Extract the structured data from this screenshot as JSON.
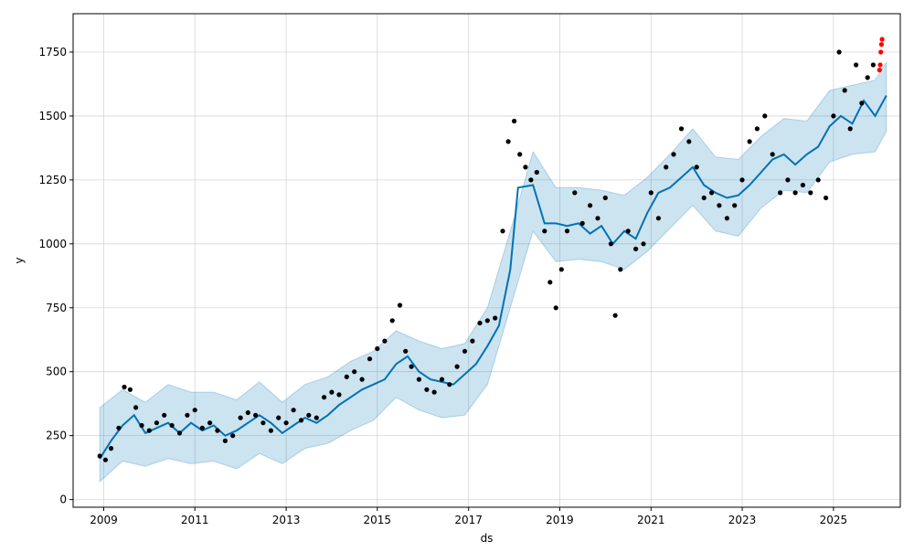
{
  "chart_data": {
    "type": "scatter",
    "title": "",
    "xlabel": "ds",
    "ylabel": "y",
    "x_axis": {
      "scale": "time",
      "range": [
        "2008-05-01",
        "2026-06-20"
      ],
      "ticks": [
        "2009",
        "2011",
        "2013",
        "2015",
        "2017",
        "2019",
        "2021",
        "2023",
        "2025"
      ]
    },
    "y_axis": {
      "range": [
        -30,
        1900
      ],
      "ticks": [
        0,
        250,
        500,
        750,
        1000,
        1250,
        1500,
        1750
      ]
    },
    "grid": true,
    "colors": {
      "observed": "#000000",
      "forecast": "#0072B2",
      "uncertainty": "#0072B2",
      "highlight": "#ff0000"
    },
    "series": [
      {
        "name": "",
        "role": "observed",
        "x": [
          "2008-12-01",
          "2009-01-15",
          "2009-03-01",
          "2009-05-01",
          "2009-06-15",
          "2009-08-01",
          "2009-09-15",
          "2009-11-01",
          "2010-01-01",
          "2010-03-01",
          "2010-05-01",
          "2010-07-01",
          "2010-09-01",
          "2010-11-01",
          "2011-01-01",
          "2011-03-01",
          "2011-05-01",
          "2011-07-01",
          "2011-09-01",
          "2011-11-01",
          "2012-01-01",
          "2012-03-01",
          "2012-05-01",
          "2012-07-01",
          "2012-09-01",
          "2012-11-01",
          "2013-01-01",
          "2013-03-01",
          "2013-05-01",
          "2013-07-01",
          "2013-09-01",
          "2013-11-01",
          "2014-01-01",
          "2014-03-01",
          "2014-05-01",
          "2014-07-01",
          "2014-09-01",
          "2014-11-01",
          "2015-01-01",
          "2015-03-01",
          "2015-05-01",
          "2015-07-01",
          "2015-08-15",
          "2015-10-01",
          "2015-12-01",
          "2016-02-01",
          "2016-04-01",
          "2016-06-01",
          "2016-08-01",
          "2016-10-01",
          "2016-12-01",
          "2017-02-01",
          "2017-04-01",
          "2017-06-01",
          "2017-08-01",
          "2017-10-01",
          "2017-11-15",
          "2018-01-01",
          "2018-02-15",
          "2018-04-01",
          "2018-05-15",
          "2018-07-01",
          "2018-09-01",
          "2018-10-15",
          "2018-12-01",
          "2019-01-15",
          "2019-03-01",
          "2019-05-01",
          "2019-07-01",
          "2019-09-01",
          "2019-11-01",
          "2020-01-01",
          "2020-02-15",
          "2020-03-20",
          "2020-05-01",
          "2020-07-01",
          "2020-09-01",
          "2020-11-01",
          "2021-01-01",
          "2021-03-01",
          "2021-05-01",
          "2021-07-01",
          "2021-09-01",
          "2021-11-01",
          "2022-01-01",
          "2022-03-01",
          "2022-05-01",
          "2022-07-01",
          "2022-09-01",
          "2022-11-01",
          "2023-01-01",
          "2023-03-01",
          "2023-05-01",
          "2023-07-01",
          "2023-09-01",
          "2023-11-01",
          "2024-01-01",
          "2024-03-01",
          "2024-05-01",
          "2024-07-01",
          "2024-09-01",
          "2024-11-01",
          "2025-01-01",
          "2025-02-15",
          "2025-04-01",
          "2025-05-15",
          "2025-07-01",
          "2025-08-15",
          "2025-10-01",
          "2025-11-15"
        ],
        "y": [
          170,
          155,
          200,
          280,
          440,
          430,
          360,
          290,
          270,
          300,
          330,
          290,
          260,
          330,
          350,
          280,
          300,
          270,
          230,
          250,
          320,
          340,
          330,
          300,
          270,
          320,
          300,
          350,
          310,
          330,
          320,
          400,
          420,
          410,
          480,
          500,
          470,
          550,
          590,
          620,
          700,
          760,
          580,
          520,
          470,
          430,
          420,
          470,
          450,
          520,
          580,
          620,
          690,
          700,
          710,
          1050,
          1400,
          1480,
          1350,
          1300,
          1250,
          1280,
          1050,
          850,
          750,
          900,
          1050,
          1200,
          1080,
          1150,
          1100,
          1180,
          1000,
          720,
          900,
          1050,
          980,
          1000,
          1200,
          1100,
          1300,
          1350,
          1450,
          1400,
          1300,
          1180,
          1200,
          1150,
          1100,
          1150,
          1250,
          1400,
          1450,
          1500,
          1350,
          1200,
          1250,
          1200,
          1230,
          1200,
          1250,
          1180,
          1500,
          1750,
          1600,
          1450,
          1700,
          1550,
          1650,
          1700
        ]
      },
      {
        "name": "",
        "role": "forecast",
        "x": [
          "2008-12-01",
          "2009-03-01",
          "2009-06-01",
          "2009-09-01",
          "2009-12-01",
          "2010-03-01",
          "2010-06-01",
          "2010-09-01",
          "2010-12-01",
          "2011-03-01",
          "2011-06-01",
          "2011-09-01",
          "2011-12-01",
          "2012-03-01",
          "2012-06-01",
          "2012-09-01",
          "2012-12-01",
          "2013-03-01",
          "2013-06-01",
          "2013-09-01",
          "2013-12-01",
          "2014-03-01",
          "2014-06-01",
          "2014-09-01",
          "2014-12-01",
          "2015-03-01",
          "2015-06-01",
          "2015-09-01",
          "2015-12-01",
          "2016-03-01",
          "2016-06-01",
          "2016-09-01",
          "2016-12-01",
          "2017-03-01",
          "2017-06-01",
          "2017-09-01",
          "2017-12-01",
          "2018-02-01",
          "2018-06-01",
          "2018-09-01",
          "2018-12-01",
          "2019-03-01",
          "2019-06-01",
          "2019-09-01",
          "2019-12-01",
          "2020-03-01",
          "2020-06-01",
          "2020-09-01",
          "2020-12-01",
          "2021-03-01",
          "2021-06-01",
          "2021-09-01",
          "2021-12-01",
          "2022-03-01",
          "2022-06-01",
          "2022-09-01",
          "2022-12-01",
          "2023-03-01",
          "2023-06-01",
          "2023-09-01",
          "2023-12-01",
          "2024-03-01",
          "2024-06-01",
          "2024-09-01",
          "2024-12-01",
          "2025-03-01",
          "2025-06-01",
          "2025-09-01",
          "2025-12-01",
          "2026-03-01"
        ],
        "y": [
          160,
          230,
          290,
          330,
          260,
          280,
          300,
          260,
          300,
          270,
          290,
          250,
          270,
          300,
          330,
          300,
          260,
          290,
          320,
          300,
          330,
          370,
          400,
          430,
          450,
          470,
          530,
          560,
          500,
          470,
          460,
          450,
          490,
          530,
          600,
          680,
          900,
          1220,
          1230,
          1080,
          1080,
          1070,
          1080,
          1040,
          1070,
          1000,
          1050,
          1020,
          1120,
          1200,
          1220,
          1260,
          1300,
          1230,
          1200,
          1180,
          1190,
          1230,
          1280,
          1330,
          1350,
          1310,
          1350,
          1380,
          1460,
          1500,
          1470,
          1560,
          1500,
          1580
        ]
      },
      {
        "name": "",
        "role": "uncertainty-upper",
        "x": [
          "2008-12-01",
          "2009-06-01",
          "2009-12-01",
          "2010-06-01",
          "2010-12-01",
          "2011-06-01",
          "2011-12-01",
          "2012-06-01",
          "2012-12-01",
          "2013-06-01",
          "2013-12-01",
          "2014-06-01",
          "2014-12-01",
          "2015-06-01",
          "2015-12-01",
          "2016-06-01",
          "2016-12-01",
          "2017-06-01",
          "2017-12-01",
          "2018-06-01",
          "2018-12-01",
          "2019-06-01",
          "2019-12-01",
          "2020-06-01",
          "2020-12-01",
          "2021-06-01",
          "2021-12-01",
          "2022-06-01",
          "2022-12-01",
          "2023-06-01",
          "2023-12-01",
          "2024-06-01",
          "2024-12-01",
          "2025-06-01",
          "2025-12-01",
          "2026-03-01"
        ],
        "y": [
          360,
          430,
          380,
          450,
          420,
          420,
          390,
          460,
          380,
          450,
          480,
          540,
          580,
          660,
          620,
          590,
          610,
          750,
          1050,
          1360,
          1220,
          1220,
          1210,
          1190,
          1260,
          1350,
          1450,
          1340,
          1330,
          1420,
          1490,
          1480,
          1600,
          1620,
          1640,
          1710
        ]
      },
      {
        "name": "",
        "role": "uncertainty-lower",
        "x": [
          "2008-12-01",
          "2009-06-01",
          "2009-12-01",
          "2010-06-01",
          "2010-12-01",
          "2011-06-01",
          "2011-12-01",
          "2012-06-01",
          "2012-12-01",
          "2013-06-01",
          "2013-12-01",
          "2014-06-01",
          "2014-12-01",
          "2015-06-01",
          "2015-12-01",
          "2016-06-01",
          "2016-12-01",
          "2017-06-01",
          "2017-12-01",
          "2018-06-01",
          "2018-12-01",
          "2019-06-01",
          "2019-12-01",
          "2020-06-01",
          "2020-12-01",
          "2021-06-01",
          "2021-12-01",
          "2022-06-01",
          "2022-12-01",
          "2023-06-01",
          "2023-12-01",
          "2024-06-01",
          "2024-12-01",
          "2025-06-01",
          "2025-12-01",
          "2026-03-01"
        ],
        "y": [
          70,
          150,
          130,
          160,
          140,
          150,
          120,
          180,
          140,
          200,
          220,
          270,
          310,
          400,
          350,
          320,
          330,
          450,
          750,
          1050,
          930,
          940,
          930,
          900,
          970,
          1060,
          1150,
          1050,
          1030,
          1140,
          1210,
          1200,
          1320,
          1350,
          1360,
          1440
        ]
      },
      {
        "name": "",
        "role": "highlight",
        "x": [
          "2026-01-05",
          "2026-01-10",
          "2026-01-15",
          "2026-01-20",
          "2026-01-25"
        ],
        "y": [
          1680,
          1700,
          1750,
          1780,
          1800
        ]
      }
    ]
  }
}
